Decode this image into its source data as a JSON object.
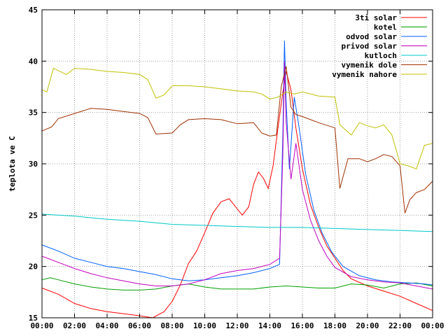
{
  "chart_data": {
    "type": "line",
    "ylabel": "teplota ve C",
    "xlabel": "",
    "title": "",
    "ylim": [
      15,
      45
    ],
    "xlim": [
      0,
      24
    ],
    "grid": true,
    "legend": "top-right",
    "x_ticks": [
      {
        "value": 0,
        "label": "00:00"
      },
      {
        "value": 2,
        "label": "02:00"
      },
      {
        "value": 4,
        "label": "04:00"
      },
      {
        "value": 6,
        "label": "06:00"
      },
      {
        "value": 8,
        "label": "08:00"
      },
      {
        "value": 10,
        "label": "10:00"
      },
      {
        "value": 12,
        "label": "12:00"
      },
      {
        "value": 14,
        "label": "14:00"
      },
      {
        "value": 16,
        "label": "16:00"
      },
      {
        "value": 18,
        "label": "18:00"
      },
      {
        "value": 20,
        "label": "20:00"
      },
      {
        "value": 22,
        "label": "22:00"
      },
      {
        "value": 24,
        "label": "00:00"
      }
    ],
    "y_ticks": [
      {
        "value": 15,
        "label": "15"
      },
      {
        "value": 20,
        "label": "20"
      },
      {
        "value": 25,
        "label": "25"
      },
      {
        "value": 30,
        "label": "30"
      },
      {
        "value": 35,
        "label": "35"
      },
      {
        "value": 40,
        "label": "40"
      },
      {
        "value": 45,
        "label": "45"
      }
    ],
    "series": [
      {
        "name": "3ti solar",
        "color": "#ff0000",
        "points": [
          [
            0,
            17.9
          ],
          [
            1,
            17.3
          ],
          [
            2,
            16.4
          ],
          [
            3,
            15.9
          ],
          [
            4,
            15.6
          ],
          [
            5,
            15.4
          ],
          [
            6,
            15.2
          ],
          [
            6.8,
            15.0
          ],
          [
            7.5,
            15.6
          ],
          [
            8,
            16.6
          ],
          [
            8.5,
            18.2
          ],
          [
            9,
            20.3
          ],
          [
            9.5,
            21.5
          ],
          [
            10,
            23.3
          ],
          [
            10.5,
            25.2
          ],
          [
            11,
            26.3
          ],
          [
            11.5,
            26.6
          ],
          [
            12,
            25.6
          ],
          [
            12.3,
            25.0
          ],
          [
            12.7,
            25.8
          ],
          [
            13,
            28.0
          ],
          [
            13.3,
            29.2
          ],
          [
            13.6,
            28.6
          ],
          [
            13.9,
            27.6
          ],
          [
            14.2,
            29.8
          ],
          [
            14.5,
            33.5
          ],
          [
            14.8,
            37.0
          ],
          [
            15.0,
            39.0
          ],
          [
            15.3,
            37.2
          ],
          [
            15.6,
            33.5
          ],
          [
            16.0,
            29.5
          ],
          [
            16.5,
            26.0
          ],
          [
            17.0,
            23.8
          ],
          [
            17.5,
            22.0
          ],
          [
            18.0,
            20.8
          ],
          [
            18.5,
            19.6
          ],
          [
            19.0,
            18.8
          ],
          [
            20.0,
            18.1
          ],
          [
            21.0,
            17.6
          ],
          [
            22.0,
            17.1
          ],
          [
            23.0,
            16.4
          ],
          [
            24.0,
            15.7
          ]
        ]
      },
      {
        "name": "kotel",
        "color": "#00a000",
        "points": [
          [
            0,
            18.7
          ],
          [
            0.5,
            18.9
          ],
          [
            1,
            18.7
          ],
          [
            2,
            18.3
          ],
          [
            3,
            18.0
          ],
          [
            4,
            17.8
          ],
          [
            5,
            17.7
          ],
          [
            6,
            17.7
          ],
          [
            7,
            17.8
          ],
          [
            8,
            18.1
          ],
          [
            9,
            18.3
          ],
          [
            10,
            18.0
          ],
          [
            11,
            17.8
          ],
          [
            12,
            17.8
          ],
          [
            13,
            17.8
          ],
          [
            14,
            18.0
          ],
          [
            15,
            18.1
          ],
          [
            16,
            18.0
          ],
          [
            17,
            17.9
          ],
          [
            18,
            17.9
          ],
          [
            19,
            18.3
          ],
          [
            20,
            18.2
          ],
          [
            21,
            17.9
          ],
          [
            22,
            18.3
          ],
          [
            23,
            18.4
          ],
          [
            24,
            18.1
          ]
        ]
      },
      {
        "name": "odvod solar",
        "color": "#0060ff",
        "points": [
          [
            0,
            22.1
          ],
          [
            1,
            21.5
          ],
          [
            2,
            20.8
          ],
          [
            3,
            20.4
          ],
          [
            4,
            20.0
          ],
          [
            5,
            19.8
          ],
          [
            6,
            19.5
          ],
          [
            7,
            19.2
          ],
          [
            8,
            18.8
          ],
          [
            9,
            18.6
          ],
          [
            10,
            18.7
          ],
          [
            11,
            18.9
          ],
          [
            12,
            19.1
          ],
          [
            13,
            19.4
          ],
          [
            14,
            19.8
          ],
          [
            14.6,
            20.2
          ],
          [
            14.8,
            33.0
          ],
          [
            14.9,
            42.0
          ],
          [
            15.0,
            36.0
          ],
          [
            15.2,
            29.5
          ],
          [
            15.5,
            36.5
          ],
          [
            15.8,
            33.5
          ],
          [
            16.2,
            29.0
          ],
          [
            16.7,
            25.5
          ],
          [
            17.2,
            23.3
          ],
          [
            17.8,
            21.4
          ],
          [
            18.5,
            20.0
          ],
          [
            19.5,
            19.1
          ],
          [
            20.5,
            18.7
          ],
          [
            21.5,
            18.5
          ],
          [
            22.5,
            18.4
          ],
          [
            23.5,
            18.3
          ],
          [
            24,
            18.2
          ]
        ]
      },
      {
        "name": "privod solar",
        "color": "#c000c0",
        "points": [
          [
            0,
            21.0
          ],
          [
            1,
            20.4
          ],
          [
            2,
            19.8
          ],
          [
            3,
            19.3
          ],
          [
            4,
            18.9
          ],
          [
            5,
            18.6
          ],
          [
            6,
            18.3
          ],
          [
            7,
            18.1
          ],
          [
            8,
            18.1
          ],
          [
            9,
            18.3
          ],
          [
            10,
            18.7
          ],
          [
            11,
            19.3
          ],
          [
            12,
            19.6
          ],
          [
            13,
            19.8
          ],
          [
            14,
            20.2
          ],
          [
            14.6,
            20.8
          ],
          [
            14.8,
            31.0
          ],
          [
            14.9,
            40.0
          ],
          [
            15.0,
            34.0
          ],
          [
            15.3,
            28.5
          ],
          [
            15.6,
            32.0
          ],
          [
            16.0,
            27.5
          ],
          [
            16.5,
            24.5
          ],
          [
            17.0,
            22.5
          ],
          [
            17.5,
            21.0
          ],
          [
            18.0,
            19.9
          ],
          [
            19.0,
            19.0
          ],
          [
            20.0,
            18.7
          ],
          [
            21.0,
            18.5
          ],
          [
            22.0,
            18.4
          ],
          [
            23.0,
            18.1
          ],
          [
            24,
            17.8
          ]
        ]
      },
      {
        "name": "kutloch",
        "color": "#00c8c8",
        "points": [
          [
            0,
            25.1
          ],
          [
            2,
            24.9
          ],
          [
            4,
            24.6
          ],
          [
            6,
            24.4
          ],
          [
            8,
            24.1
          ],
          [
            10,
            24.0
          ],
          [
            12,
            23.9
          ],
          [
            14,
            23.8
          ],
          [
            16,
            23.8
          ],
          [
            18,
            23.7
          ],
          [
            20,
            23.6
          ],
          [
            22,
            23.5
          ],
          [
            24,
            23.4
          ]
        ]
      },
      {
        "name": "vymenik dole",
        "color": "#a03000",
        "points": [
          [
            0,
            33.2
          ],
          [
            0.6,
            33.6
          ],
          [
            1,
            34.4
          ],
          [
            2,
            34.9
          ],
          [
            3,
            35.4
          ],
          [
            4,
            35.3
          ],
          [
            5,
            35.1
          ],
          [
            6,
            34.9
          ],
          [
            6.5,
            34.5
          ],
          [
            7,
            32.9
          ],
          [
            8,
            33.0
          ],
          [
            8.5,
            33.8
          ],
          [
            9,
            34.3
          ],
          [
            10,
            34.4
          ],
          [
            11,
            34.3
          ],
          [
            12,
            33.9
          ],
          [
            13,
            34.0
          ],
          [
            13.5,
            33.0
          ],
          [
            14,
            32.7
          ],
          [
            14.4,
            32.8
          ],
          [
            14.7,
            37.5
          ],
          [
            15.0,
            39.5
          ],
          [
            15.3,
            35.5
          ],
          [
            15.6,
            34.8
          ],
          [
            16.0,
            34.6
          ],
          [
            16.5,
            34.3
          ],
          [
            17,
            34.0
          ],
          [
            18,
            33.5
          ],
          [
            18.3,
            27.6
          ],
          [
            18.8,
            30.5
          ],
          [
            19.5,
            30.5
          ],
          [
            20,
            30.2
          ],
          [
            20.5,
            30.5
          ],
          [
            21,
            30.9
          ],
          [
            21.5,
            30.7
          ],
          [
            22,
            29.8
          ],
          [
            22.3,
            25.2
          ],
          [
            22.6,
            26.5
          ],
          [
            23,
            27.2
          ],
          [
            23.5,
            27.5
          ],
          [
            24,
            28.3
          ]
        ]
      },
      {
        "name": "vymenik nahore",
        "color": "#c0c000",
        "points": [
          [
            0,
            37.2
          ],
          [
            0.3,
            37.0
          ],
          [
            0.7,
            39.3
          ],
          [
            1.5,
            38.7
          ],
          [
            2,
            39.3
          ],
          [
            3,
            39.2
          ],
          [
            4,
            39.0
          ],
          [
            5,
            38.9
          ],
          [
            6,
            38.7
          ],
          [
            6.5,
            38.2
          ],
          [
            7,
            36.4
          ],
          [
            7.5,
            36.7
          ],
          [
            8,
            37.6
          ],
          [
            9,
            37.6
          ],
          [
            10,
            37.5
          ],
          [
            11,
            37.3
          ],
          [
            12,
            37.1
          ],
          [
            13,
            37.0
          ],
          [
            13.5,
            36.8
          ],
          [
            14,
            36.3
          ],
          [
            14.5,
            36.5
          ],
          [
            15,
            37.0
          ],
          [
            15.5,
            36.8
          ],
          [
            16,
            37.0
          ],
          [
            17,
            36.6
          ],
          [
            18,
            36.5
          ],
          [
            18.3,
            33.8
          ],
          [
            19,
            32.8
          ],
          [
            19.5,
            34.0
          ],
          [
            20,
            33.7
          ],
          [
            20.5,
            33.5
          ],
          [
            21,
            33.8
          ],
          [
            21.5,
            32.8
          ],
          [
            22,
            30.0
          ],
          [
            22.5,
            29.8
          ],
          [
            23,
            29.5
          ],
          [
            23.5,
            31.8
          ],
          [
            24,
            32.0
          ]
        ]
      }
    ]
  }
}
